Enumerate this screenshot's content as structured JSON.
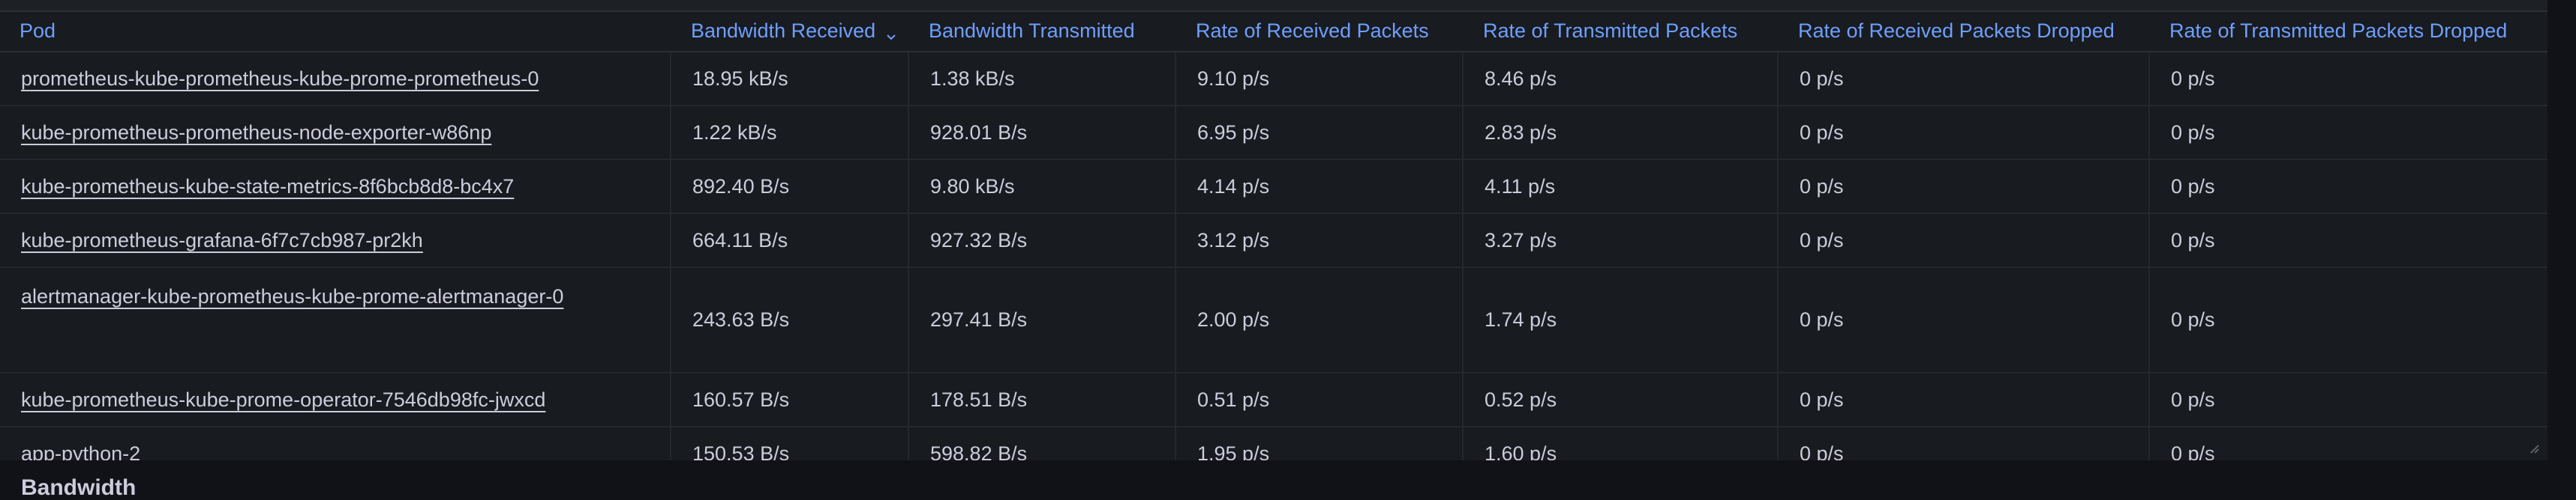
{
  "table": {
    "columns": [
      {
        "label": "Pod",
        "sorted": false
      },
      {
        "label": "Bandwidth Received",
        "sorted": true,
        "sort_direction": "descending"
      },
      {
        "label": "Bandwidth Transmitted",
        "sorted": false
      },
      {
        "label": "Rate of Received Packets",
        "sorted": false
      },
      {
        "label": "Rate of Transmitted Packets",
        "sorted": false
      },
      {
        "label": "Rate of Received Packets Dropped",
        "sorted": false
      },
      {
        "label": "Rate of Transmitted Packets Dropped",
        "sorted": false
      }
    ],
    "rows": [
      {
        "pod": "prometheus-kube-prometheus-kube-prome-prometheus-0",
        "bw_rx": "18.95 kB/s",
        "bw_tx": "1.38 kB/s",
        "rx_pkts": "9.10 p/s",
        "tx_pkts": "8.46 p/s",
        "rx_drop": "0 p/s",
        "tx_drop": "0 p/s"
      },
      {
        "pod": "kube-prometheus-prometheus-node-exporter-w86np",
        "bw_rx": "1.22 kB/s",
        "bw_tx": "928.01 B/s",
        "rx_pkts": "6.95 p/s",
        "tx_pkts": "2.83 p/s",
        "rx_drop": "0 p/s",
        "tx_drop": "0 p/s"
      },
      {
        "pod": "kube-prometheus-kube-state-metrics-8f6bcb8d8-bc4x7",
        "bw_rx": "892.40 B/s",
        "bw_tx": "9.80 kB/s",
        "rx_pkts": "4.14 p/s",
        "tx_pkts": "4.11 p/s",
        "rx_drop": "0 p/s",
        "tx_drop": "0 p/s"
      },
      {
        "pod": "kube-prometheus-grafana-6f7c7cb987-pr2kh",
        "bw_rx": "664.11 B/s",
        "bw_tx": "927.32 B/s",
        "rx_pkts": "3.12 p/s",
        "tx_pkts": "3.27 p/s",
        "rx_drop": "0 p/s",
        "tx_drop": "0 p/s"
      },
      {
        "pod": "alertmanager-kube-prometheus-kube-prome-alertmanager-0",
        "bw_rx": "243.63 B/s",
        "bw_tx": "297.41 B/s",
        "rx_pkts": "2.00 p/s",
        "tx_pkts": "1.74 p/s",
        "rx_drop": "0 p/s",
        "tx_drop": "0 p/s"
      },
      {
        "pod": "kube-prometheus-kube-prome-operator-7546db98fc-jwxcd",
        "bw_rx": "160.57 B/s",
        "bw_tx": "178.51 B/s",
        "rx_pkts": "0.51 p/s",
        "tx_pkts": "0.52 p/s",
        "rx_drop": "0 p/s",
        "tx_drop": "0 p/s"
      },
      {
        "pod": "app-python-2",
        "bw_rx": "150.53 B/s",
        "bw_tx": "598.82 B/s",
        "rx_pkts": "1.95 p/s",
        "tx_pkts": "1.60 p/s",
        "rx_drop": "0 p/s",
        "tx_drop": "0 p/s"
      }
    ]
  },
  "next_panel": {
    "title": "Bandwidth"
  },
  "icons": {
    "sort": "chevron-down-icon",
    "resize": "resize-handle-icon"
  },
  "colors": {
    "header_text": "#6e9fff",
    "body_text": "#ccccdc",
    "panel_bg": "#181b1f",
    "page_bg": "#111217",
    "grid_line": "#24272c"
  }
}
